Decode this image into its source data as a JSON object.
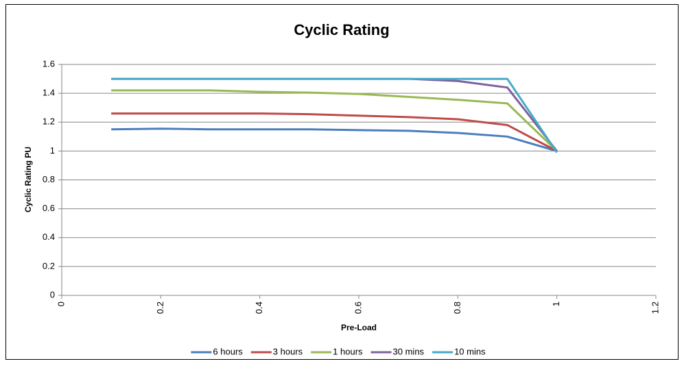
{
  "chart_data": {
    "type": "line",
    "title": "Cyclic Rating",
    "x_label": "Pre-Load",
    "y_label": "Cyclic Rating PU",
    "x": [
      0.1,
      0.2,
      0.3,
      0.4,
      0.5,
      0.6,
      0.7,
      0.8,
      0.9,
      1
    ],
    "series": [
      {
        "name": "6 hours",
        "color": "#4a7ebb",
        "values": [
          1.15,
          1.155,
          1.15,
          1.15,
          1.15,
          1.145,
          1.14,
          1.125,
          1.1,
          1.0
        ]
      },
      {
        "name": "3 hours",
        "color": "#be4b48",
        "values": [
          1.26,
          1.26,
          1.26,
          1.26,
          1.255,
          1.245,
          1.235,
          1.22,
          1.18,
          1.0
        ]
      },
      {
        "name": "1 hours",
        "color": "#98b954",
        "values": [
          1.42,
          1.42,
          1.42,
          1.41,
          1.405,
          1.395,
          1.375,
          1.355,
          1.33,
          1.0
        ]
      },
      {
        "name": "30 mins",
        "color": "#7d60a0",
        "values": [
          1.5,
          1.5,
          1.5,
          1.5,
          1.5,
          1.5,
          1.5,
          1.485,
          1.44,
          1.0
        ]
      },
      {
        "name": "10 mins",
        "color": "#46aac5",
        "values": [
          1.5,
          1.5,
          1.5,
          1.5,
          1.5,
          1.5,
          1.5,
          1.5,
          1.5,
          0.99
        ]
      }
    ],
    "xlim": [
      0,
      1.2
    ],
    "xticks": [
      0,
      0.2,
      0.4,
      0.6,
      0.8,
      1,
      1.2
    ],
    "ylim": [
      0,
      1.6
    ],
    "yticks": [
      0,
      0.2,
      0.4,
      0.6,
      0.8,
      1,
      1.2,
      1.4,
      1.6
    ],
    "grid": true,
    "legend": "bottom"
  }
}
